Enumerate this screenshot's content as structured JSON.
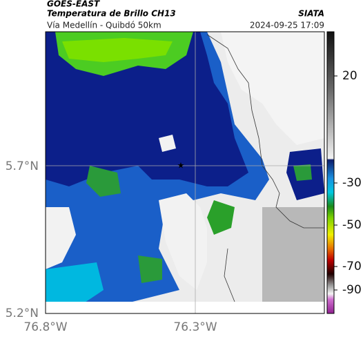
{
  "header": {
    "title": "GOES-EAST",
    "subtitle": "Temperatura de Brillo CH13",
    "source": "SIATA",
    "region": "Vía Medellín - Quibdó 50km",
    "timestamp": "2024-09-25 17:09"
  },
  "map": {
    "lat_labels": [
      "5.7°N",
      "5.2°N"
    ],
    "lon_labels": [
      "76.8°W",
      "76.3°W"
    ],
    "colorbar_labels": [
      "20",
      "-30",
      "-50",
      "-70",
      "-90"
    ]
  }
}
